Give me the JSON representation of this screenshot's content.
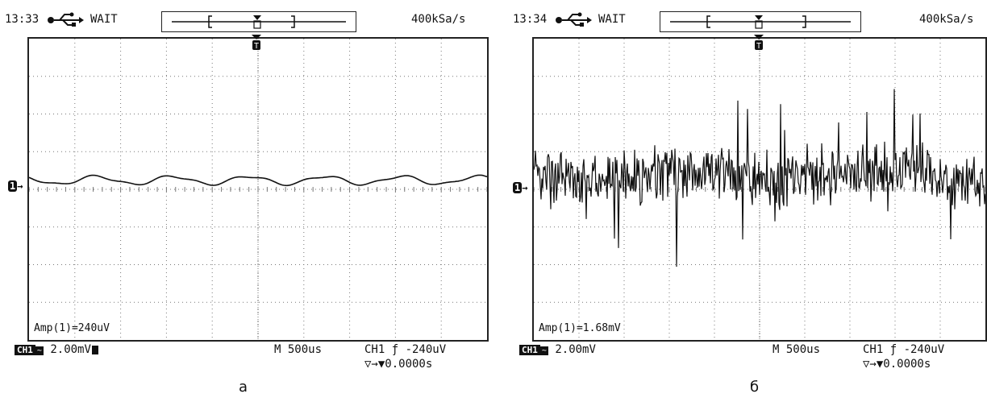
{
  "panels": [
    {
      "time": "13:33",
      "mode": "WAIT",
      "rate": "400kSa/s",
      "channel_marker": "1",
      "amp": "Amp(1)=240uV",
      "ch_badge": "CH1",
      "coupling_icon": "ac-coupling-icon",
      "volts_div": "2.00mV",
      "timebase": "M 500us",
      "trigger": "CH1 ƒ -240uV",
      "delay": "▽→▼0.0000s",
      "caption": "а",
      "signal": "low-amplitude-sine"
    },
    {
      "time": "13:34",
      "mode": "WAIT",
      "rate": "400kSa/s",
      "channel_marker": "1",
      "amp": "Amp(1)=1.68mV",
      "ch_badge": "CH1",
      "coupling_icon": "ac-coupling-icon",
      "volts_div": "2.00mV",
      "timebase": "M 500us",
      "trigger": "CH1 ƒ -240uV",
      "delay": "▽→▼0.0000s",
      "caption": "б",
      "signal": "noisy"
    }
  ],
  "colors": {
    "trace": "#111111",
    "grid": "#777777",
    "background": "#ffffff"
  },
  "icons": {
    "usb": "usb-icon",
    "trigger": "trigger-marker-icon"
  }
}
